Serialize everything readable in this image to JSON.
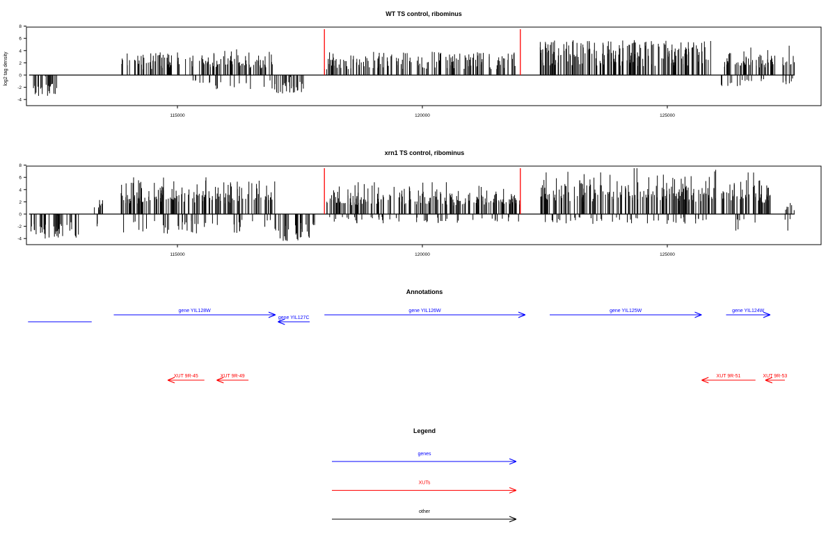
{
  "chart_data": [
    {
      "type": "bar",
      "title": "WT TS control, ribominus",
      "ylabel": "log2 tag density",
      "xlabel": "",
      "ylim": [
        -5,
        8
      ],
      "xlim": [
        112000,
        128500
      ],
      "y_ticks": [
        "8",
        "6",
        "4",
        "2",
        "0",
        "-2",
        "-4"
      ],
      "x_ticks": [
        "115000",
        "120000",
        "125000"
      ],
      "grid": false,
      "markers": [
        118000,
        122000
      ],
      "marker_color": "#ff0000",
      "segments": [
        {
          "start": 112000,
          "end": 112550,
          "min": -3.4,
          "max": -0.2
        },
        {
          "start": 113850,
          "end": 115300,
          "min": -0.5,
          "max": 3.7
        },
        {
          "start": 115300,
          "end": 116950,
          "min": -2.3,
          "max": 4.2
        },
        {
          "start": 116950,
          "end": 117600,
          "min": -3.0,
          "max": -0.3
        },
        {
          "start": 118000,
          "end": 122000,
          "min": -0.3,
          "max": 3.8
        },
        {
          "start": 122400,
          "end": 125900,
          "min": -0.3,
          "max": 5.7
        },
        {
          "start": 126100,
          "end": 127200,
          "min": -1.8,
          "max": 4.5
        },
        {
          "start": 127350,
          "end": 127600,
          "min": -1.5,
          "max": 4.8
        }
      ]
    },
    {
      "type": "bar",
      "title": "xrn1 TS control, ribominus",
      "ylabel": "",
      "xlabel": "",
      "ylim": [
        -5,
        8
      ],
      "xlim": [
        112000,
        128500
      ],
      "y_ticks": [
        "8",
        "6",
        "4",
        "2",
        "0",
        "-2",
        "-4"
      ],
      "x_ticks": [
        "115000",
        "120000",
        "125000"
      ],
      "grid": false,
      "markers": [
        118000,
        122000
      ],
      "marker_color": "#ff0000",
      "segments": [
        {
          "start": 112000,
          "end": 113000,
          "min": -4.0,
          "max": -0.2
        },
        {
          "start": 113300,
          "end": 113500,
          "min": -2.0,
          "max": 2.3
        },
        {
          "start": 113850,
          "end": 117000,
          "min": -3.2,
          "max": 6.0
        },
        {
          "start": 117000,
          "end": 117800,
          "min": -4.4,
          "max": -0.3
        },
        {
          "start": 118000,
          "end": 122000,
          "min": -1.5,
          "max": 5.2
        },
        {
          "start": 122400,
          "end": 126000,
          "min": -1.6,
          "max": 7.5
        },
        {
          "start": 126100,
          "end": 127100,
          "min": -2.7,
          "max": 6.8
        },
        {
          "start": 127400,
          "end": 127600,
          "min": -2.7,
          "max": 1.8
        }
      ]
    }
  ],
  "annotations": {
    "title": "Annotations",
    "genes": [
      {
        "label": "gene YIL128W",
        "from": 113700,
        "to": 117000,
        "color": "#0000ff"
      },
      {
        "label": "gene YIL127C",
        "from": 117700,
        "to": 117050,
        "color": "#0000ff"
      },
      {
        "label": "gene YIL126W",
        "from": 118000,
        "to": 122100,
        "color": "#0000ff"
      },
      {
        "label": "gene YIL125W",
        "from": 122600,
        "to": 125700,
        "color": "#0000ff"
      },
      {
        "label": "gene YIL124W",
        "from": 126200,
        "to": 127100,
        "color": "#0000ff"
      },
      {
        "label": "",
        "from": 111950,
        "to": 113250,
        "color": "#0000ff"
      }
    ],
    "xuts": [
      {
        "label": "XUT 9R-45",
        "from": 115550,
        "to": 114800,
        "color": "#ff0000"
      },
      {
        "label": "XUT 9R-49",
        "from": 116450,
        "to": 115800,
        "color": "#ff0000"
      },
      {
        "label": "XUT 9R-51",
        "from": 126800,
        "to": 125700,
        "color": "#ff0000"
      },
      {
        "label": "XUT 9R-53",
        "from": 127400,
        "to": 127000,
        "color": "#ff0000"
      }
    ]
  },
  "legend": {
    "title": "Legend",
    "items": [
      {
        "label": "genes",
        "color": "#0000ff"
      },
      {
        "label": "XUTs",
        "color": "#ff0000"
      },
      {
        "label": "other",
        "color": "#000000"
      }
    ]
  }
}
